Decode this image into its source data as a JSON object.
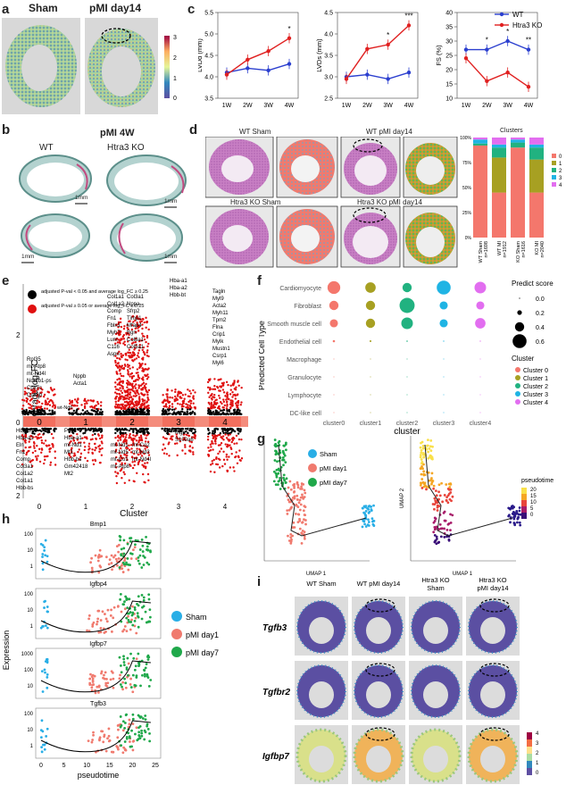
{
  "panels": {
    "a": {
      "letter": "a",
      "titles": [
        "Sham",
        "pMI day14"
      ],
      "colorbar_ticks": [
        "3",
        "2",
        "1",
        "0"
      ]
    },
    "b": {
      "letter": "b",
      "title": "pMI 4W",
      "groups": [
        "WT",
        "Htra3 KO"
      ],
      "scale": "1mm"
    },
    "c": {
      "letter": "c",
      "legend": [
        "WT",
        "Htra3 KO"
      ],
      "colors": {
        "wt": "#2b3fcf",
        "ko": "#e02020"
      }
    },
    "d": {
      "letter": "d",
      "titles": [
        "WT Sham",
        "WT pMI day14",
        "Htra3 KO Sham",
        "Htra3 KO pMI day14"
      ],
      "clusters_title": "Clusters",
      "bar_labels": [
        "WT Sham\nn=1698",
        "WT MI\nn=1912",
        "KO Sham\nn=1616",
        "KO MI\nn=2040"
      ],
      "legend": [
        "0",
        "1",
        "2",
        "3",
        "4"
      ],
      "yticks": [
        "100%",
        "75%",
        "50%",
        "25%",
        "0%"
      ]
    },
    "e": {
      "letter": "e",
      "ylabel": "Average log₂FC",
      "xlabel": "Cluster",
      "legend": [
        "adjusted P-val < 0.05 and average log_FC ≥ 0.25",
        "adjusted P-val ≥ 0.05 or average log_FC ≤ 0.25"
      ],
      "clusters": [
        "0",
        "1",
        "2",
        "3",
        "4"
      ],
      "yticks": [
        "2",
        "0",
        "2"
      ],
      "genes_up": {
        "c0": [
          "Rpl35",
          "mt-Atp8",
          "mt-Nd4l",
          "Ndufb1-ps",
          "Cox7c",
          "Cox6b"
        ],
        "c1": [
          "Nppb",
          "Acta1"
        ],
        "c2": [
          "Col1a1",
          "Col3a1",
          "Col1a2",
          "Nppa",
          "Comp",
          "Sfrp2",
          "Fn1",
          "Timp1",
          "Fbln1",
          "Mfap4",
          "Myh7",
          "Bgn",
          "Lum",
          "Col8a1",
          "C116",
          "Col5a1",
          "Aspn"
        ],
        "c3": [
          "Hbb-bs",
          "Hba-a1",
          "Hba-a2",
          "Hbb-bt"
        ],
        "c4": [
          "Tagln",
          "Myl9",
          "Acta2",
          "Myh11",
          "Tpm2",
          "Flna",
          "Crip1",
          "Mylk",
          "Mustn1",
          "Csrp1",
          "Myl6"
        ]
      },
      "genes_down": {
        "c0": [
          "Hbb-bs",
          "Hba-a1",
          "Eln",
          "Fn1",
          "Comp",
          "Col3a1",
          "Col1a2",
          "Col1a1",
          "Hbb-bs"
        ],
        "c1": [
          "Pdk3",
          "Hba-a1",
          "mt-Nd1",
          "Mt1",
          "Hbb-bs",
          "Gm42418",
          "Mt2"
        ],
        "c2": [
          "mt-Nd1",
          "mt-Co2",
          "mt-Nd5",
          "mt-Nd3",
          "mt-Co1",
          "mt-Nd4l",
          "mt-Atp8"
        ],
        "c3": [
          "Mgp",
          "S100a6"
        ],
        "c4": []
      },
      "wt_note": "wt-Nd6"
    },
    "f": {
      "letter": "f",
      "ylabel": "Predicted Cell Type",
      "xlabel": "cluster",
      "celltypes": [
        "Cardiomyocyte",
        "Fibroblast",
        "Smooth muscle cell",
        "Endothelial cell",
        "Macrophage",
        "Granulocyte",
        "Lymphocyte",
        "DC-like cell"
      ],
      "clusters": [
        "cluster0",
        "cluster1",
        "cluster2",
        "cluster3",
        "cluster4"
      ],
      "size_legend_title": "Predict score",
      "size_legend": [
        "0.0",
        "0.2",
        "0.4",
        "0.6"
      ],
      "color_legend_title": "Cluster",
      "color_legend": [
        "Cluster 0",
        "Cluster 1",
        "Cluster 2",
        "Cluster 3",
        "Cluster 4"
      ]
    },
    "g": {
      "letter": "g",
      "xlabel": "UMAP 1",
      "ylabel": "UMAP 2",
      "legend": [
        "Sham",
        "pMI day1",
        "pMI day7"
      ],
      "pt_title": "pseudotime",
      "pt_ticks": [
        "20",
        "15",
        "10",
        "5",
        "0"
      ]
    },
    "h": {
      "letter": "h",
      "genes": [
        "Bmp1",
        "Igfbp4",
        "Igfbp7",
        "Tgfb3"
      ],
      "ylabel": "Expression",
      "xlabel": "pseudotime",
      "legend": [
        "Sham",
        "pMI day1",
        "pMI day7"
      ]
    },
    "i": {
      "letter": "i",
      "cols": [
        "WT Sham",
        "WT pMI day14",
        "Htra3 KO\nSham",
        "Htra3 KO\npMI day14"
      ],
      "rows": [
        "Tgfb3",
        "Tgfbr2",
        "Igfbp7"
      ],
      "colorbar_ticks": [
        "4",
        "3",
        "2",
        "1",
        "0"
      ]
    }
  },
  "chart_data": [
    {
      "type": "line",
      "id": "c-LVDd",
      "ylabel": "LVDd (mm)",
      "categories": [
        "1W",
        "2W",
        "3W",
        "4W"
      ],
      "ylim": [
        3.5,
        5.5
      ],
      "series": [
        {
          "name": "WT",
          "values": [
            4.1,
            4.2,
            4.15,
            4.3
          ]
        },
        {
          "name": "Htra3 KO",
          "values": [
            4.05,
            4.4,
            4.6,
            4.9
          ]
        }
      ],
      "annotations": [
        "",
        "",
        "",
        "*"
      ]
    },
    {
      "type": "line",
      "id": "c-LVDs",
      "ylabel": "LVDs (mm)",
      "categories": [
        "1W",
        "2W",
        "3W",
        "4W"
      ],
      "ylim": [
        2.5,
        4.5
      ],
      "series": [
        {
          "name": "WT",
          "values": [
            3.0,
            3.05,
            2.95,
            3.1
          ]
        },
        {
          "name": "Htra3 KO",
          "values": [
            2.95,
            3.65,
            3.75,
            4.2
          ]
        }
      ],
      "annotations": [
        "",
        "",
        "*",
        "***"
      ]
    },
    {
      "type": "line",
      "id": "c-FS",
      "ylabel": "FS (%)",
      "categories": [
        "1W",
        "2W",
        "3W",
        "4W"
      ],
      "ylim": [
        10,
        40
      ],
      "series": [
        {
          "name": "WT",
          "values": [
            27,
            27,
            30,
            27
          ]
        },
        {
          "name": "Htra3 KO",
          "values": [
            24,
            16,
            19,
            14
          ]
        }
      ],
      "annotations": [
        "",
        "*",
        "*",
        "**"
      ]
    },
    {
      "type": "bar",
      "id": "d-clusters",
      "categories": [
        "WT Sham",
        "WT MI",
        "KO Sham",
        "KO MI"
      ],
      "ylim": [
        0,
        100
      ],
      "series": [
        {
          "name": "0",
          "values": [
            92,
            45,
            90,
            45
          ]
        },
        {
          "name": "1",
          "values": [
            0,
            35,
            0,
            33
          ]
        },
        {
          "name": "2",
          "values": [
            2,
            10,
            5,
            12
          ]
        },
        {
          "name": "3",
          "values": [
            4,
            3,
            3,
            3
          ]
        },
        {
          "name": "4",
          "values": [
            2,
            7,
            2,
            7
          ]
        }
      ]
    },
    {
      "type": "scatter",
      "id": "f-dotplot",
      "xcategories": [
        "cluster0",
        "cluster1",
        "cluster2",
        "cluster3",
        "cluster4"
      ],
      "ycategories": [
        "Cardiomyocyte",
        "Fibroblast",
        "Smooth muscle cell",
        "Endothelial cell",
        "Macrophage",
        "Granulocyte",
        "Lymphocyte",
        "DC-like cell"
      ],
      "values": [
        [
          0.55,
          0.45,
          0.4,
          0.6,
          0.5
        ],
        [
          0.4,
          0.4,
          0.65,
          0.35,
          0.35
        ],
        [
          0.35,
          0.4,
          0.5,
          0.35,
          0.45
        ],
        [
          0.1,
          0.08,
          0.06,
          0.05,
          0.05
        ],
        [
          0.01,
          0.01,
          0.01,
          0.01,
          0.01
        ],
        [
          0.01,
          0.01,
          0.01,
          0.01,
          0.01
        ],
        [
          0.01,
          0.01,
          0.01,
          0.01,
          0.01
        ],
        [
          0.01,
          0.01,
          0.01,
          0.01,
          0.01
        ]
      ]
    }
  ]
}
